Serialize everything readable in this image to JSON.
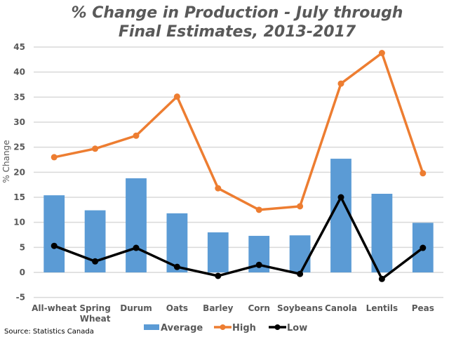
{
  "chart_data": {
    "type": "bar",
    "title_lines": [
      "% Change in Production - July through",
      "Final Estimates, 2013-2017"
    ],
    "xlabel": "",
    "ylabel": "% Change",
    "ylim": [
      -5,
      45
    ],
    "yticks": [
      -5,
      0,
      5,
      10,
      15,
      20,
      25,
      30,
      35,
      40,
      45
    ],
    "grid": true,
    "legend_position": "bottom",
    "categories": [
      "All-wheat",
      "Spring Wheat",
      "Durum",
      "Oats",
      "Barley",
      "Corn",
      "Soybeans",
      "Canola",
      "Lentils",
      "Peas"
    ],
    "category_lines": [
      [
        "All-wheat"
      ],
      [
        "Spring",
        "Wheat"
      ],
      [
        "Durum"
      ],
      [
        "Oats"
      ],
      [
        "Barley"
      ],
      [
        "Corn"
      ],
      [
        "Soybeans"
      ],
      [
        "Canola"
      ],
      [
        "Lentils"
      ],
      [
        "Peas"
      ]
    ],
    "series": [
      {
        "name": "Average",
        "kind": "bar",
        "color": "#5B9BD5",
        "values": [
          15.4,
          12.4,
          18.8,
          11.8,
          8.0,
          7.3,
          7.4,
          22.7,
          15.7,
          9.9
        ]
      },
      {
        "name": "High",
        "kind": "line",
        "color": "#ED7D31",
        "values": [
          23.0,
          24.7,
          27.3,
          35.1,
          16.8,
          12.5,
          13.2,
          37.7,
          43.8,
          19.8
        ]
      },
      {
        "name": "Low",
        "kind": "line",
        "color": "#000000",
        "values": [
          5.3,
          2.2,
          4.9,
          1.1,
          -0.7,
          1.5,
          -0.3,
          15.0,
          -1.3,
          4.9
        ]
      }
    ],
    "source": "Source: Statistics Canada"
  }
}
